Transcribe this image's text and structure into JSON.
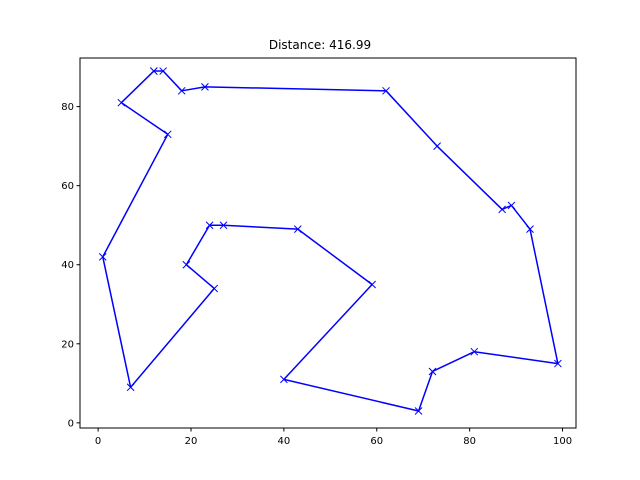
{
  "chart_data": {
    "type": "line",
    "title": "Distance: 416.99",
    "xlabel": "",
    "ylabel": "",
    "xlim": [
      -3.9,
      102.9
    ],
    "ylim": [
      -1.3,
      92.3
    ],
    "x_ticks": [
      0,
      20,
      40,
      60,
      80,
      100
    ],
    "y_ticks": [
      0,
      20,
      40,
      60,
      80
    ],
    "grid": false,
    "legend": "none",
    "color": "#0000ff",
    "marker": "x",
    "series": [
      {
        "x": [
          12,
          14,
          18,
          23,
          62,
          73,
          87,
          89,
          93,
          99,
          81,
          72,
          69,
          40,
          59,
          43,
          27,
          24,
          19,
          25,
          7,
          1,
          15,
          5,
          12
        ],
        "y": [
          89,
          89,
          84,
          85,
          84,
          70,
          54,
          55,
          49,
          15,
          18,
          13,
          3,
          11,
          35,
          49,
          50,
          50,
          40,
          34,
          9,
          42,
          73,
          81,
          89
        ]
      }
    ]
  }
}
